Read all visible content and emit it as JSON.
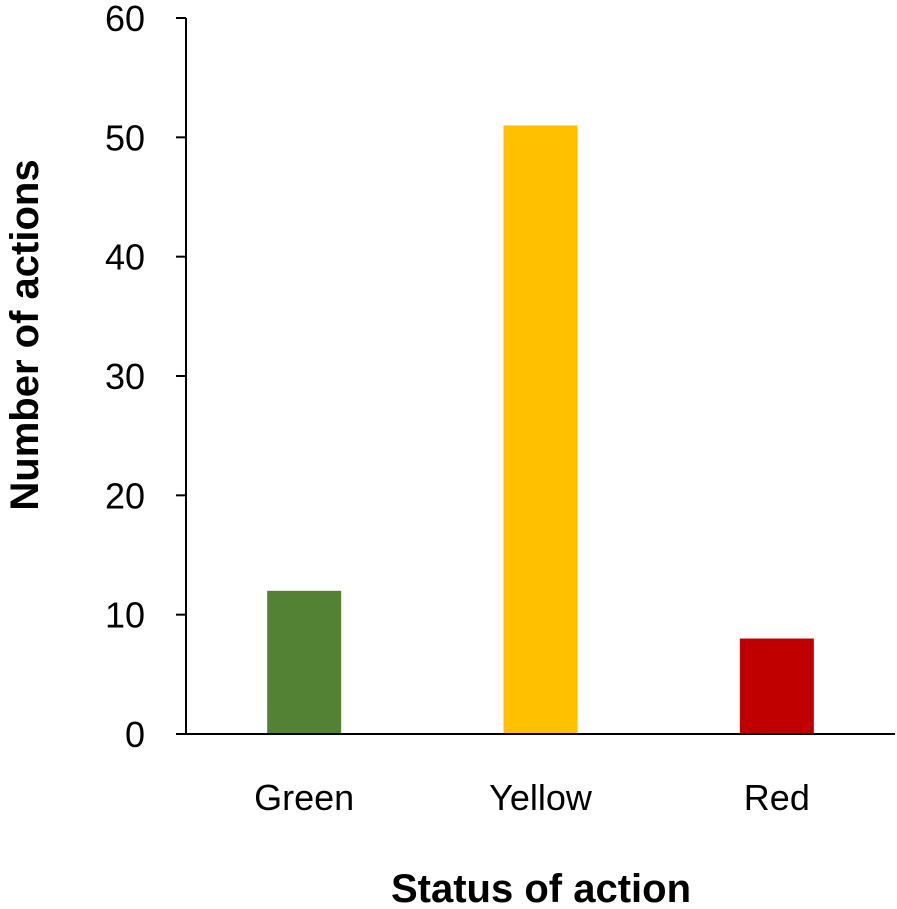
{
  "chart_data": {
    "type": "bar",
    "categories": [
      "Green",
      "Yellow",
      "Red"
    ],
    "values": [
      12,
      51,
      8
    ],
    "colors": [
      "#548235",
      "#FFC000",
      "#C00000"
    ],
    "title": "",
    "xlabel": "Status of action",
    "ylabel": "Number of actions",
    "ylim": [
      0,
      60
    ],
    "yticks": [
      0,
      10,
      20,
      30,
      40,
      50,
      60
    ],
    "grid": false,
    "legend": "none"
  }
}
